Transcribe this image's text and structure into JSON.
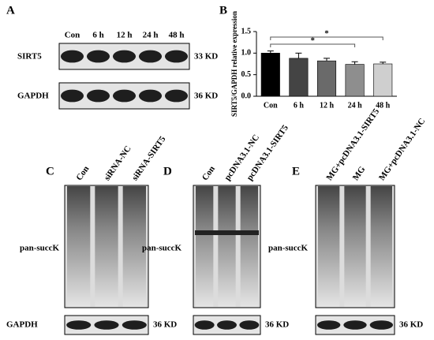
{
  "panels": {
    "A": {
      "label": "A",
      "lanes": [
        "Con",
        "6 h",
        "12 h",
        "24 h",
        "48 h"
      ],
      "rows": [
        {
          "protein": "SIRT5",
          "size": "33 KD"
        },
        {
          "protein": "GAPDH",
          "size": "36 KD"
        }
      ]
    },
    "C": {
      "label": "C",
      "lanes": [
        "Con",
        "siRNA-NC",
        "siRNA-SIRT5"
      ],
      "blot": "pan-succK",
      "loading": "GAPDH",
      "loading_size": "36 KD"
    },
    "D": {
      "label": "D",
      "lanes": [
        "Con",
        "pcDNA3.1-NC",
        "pcDNA3.1-SIRT5"
      ],
      "blot": "pan-succK",
      "loading_size": "36 KD"
    },
    "E": {
      "label": "E",
      "lanes": [
        "MG+pcDNA3.1-SIRT5",
        "MG",
        "MG+pcDNA3.1-NC"
      ],
      "blot": "pan-succK",
      "loading_size": "36 KD"
    }
  },
  "chart_data": {
    "type": "bar",
    "panel_label": "B",
    "y_label": "SIRT5/GAPDH relative expression",
    "categories": [
      "Con",
      "6 h",
      "12 h",
      "24 h",
      "48 h"
    ],
    "values": [
      1.0,
      0.88,
      0.82,
      0.74,
      0.75
    ],
    "errors": [
      0.05,
      0.12,
      0.06,
      0.06,
      0.04
    ],
    "colors": [
      "#000000",
      "#444444",
      "#6a6a6a",
      "#8e8e8e",
      "#cfcfcf"
    ],
    "ylim": [
      0,
      1.5
    ],
    "yticks": [
      {
        "value": 0,
        "label": "0.0"
      },
      0.5,
      {
        "value": 1,
        "label": "1.0"
      },
      1.5
    ],
    "significance": [
      {
        "from": "Con",
        "to": "48 h",
        "label": "*"
      },
      {
        "from": "Con",
        "to": "24 h",
        "label": "*"
      }
    ]
  }
}
